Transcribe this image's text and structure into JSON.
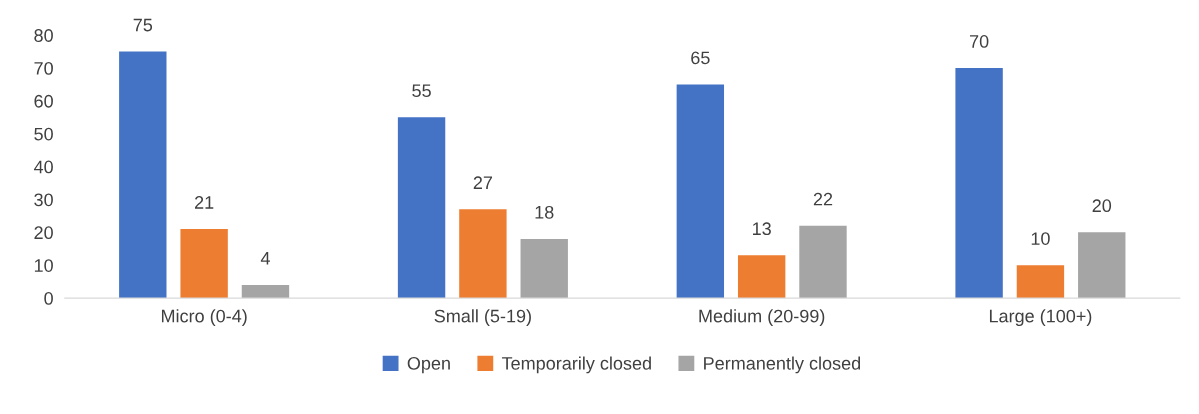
{
  "chart_data": {
    "type": "bar",
    "categories": [
      "Micro (0-4)",
      "Small (5-19)",
      "Medium (20-99)",
      "Large (100+)"
    ],
    "series": [
      {
        "name": "Open",
        "color": "#4472c4",
        "values": [
          75,
          55,
          65,
          70
        ]
      },
      {
        "name": "Temporarily closed",
        "color": "#ed7d31",
        "values": [
          21,
          27,
          13,
          10
        ]
      },
      {
        "name": "Permanently closed",
        "color": "#a5a5a5",
        "values": [
          4,
          18,
          22,
          20
        ]
      }
    ],
    "ylim": [
      0,
      80
    ],
    "yticks": [
      0,
      10,
      20,
      30,
      40,
      50,
      60,
      70,
      80
    ],
    "grid": false,
    "legend": "bottom",
    "data_labels": true
  }
}
